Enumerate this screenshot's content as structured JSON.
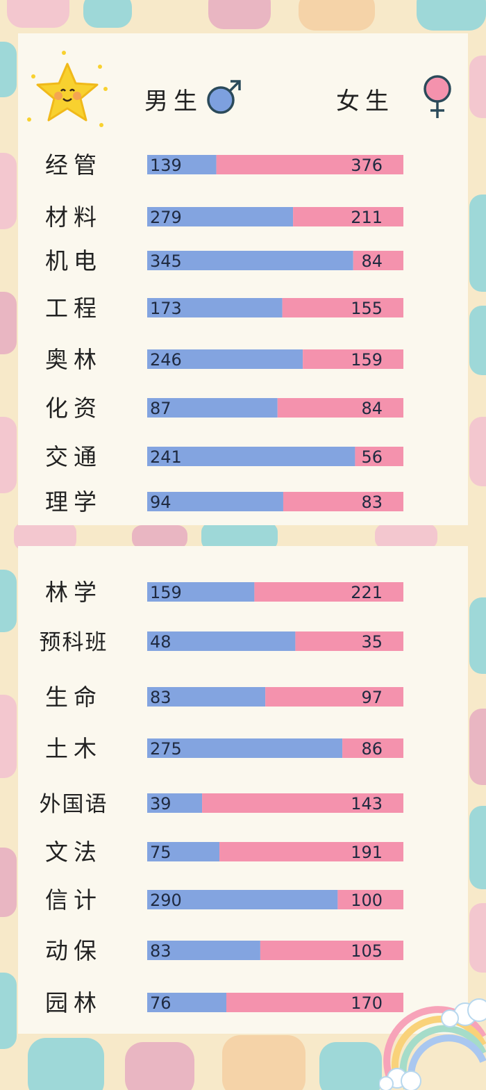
{
  "legend": {
    "male_label": "男生",
    "female_label": "女生",
    "male_icon": "male-symbol-icon",
    "female_icon": "female-symbol-icon"
  },
  "decorations": {
    "corner_icon": "smiling-star-icon",
    "bottom_icon": "rainbow-cloud-icon"
  },
  "colors": {
    "male": "#83a4e0",
    "female": "#f492ad",
    "background": "#f7e9c9",
    "panel": "#fbf8ee"
  },
  "chart_data": [
    {
      "type": "bar",
      "orientation": "horizontal-stacked-100",
      "categories": [
        "经管",
        "材料",
        "机电",
        "工程",
        "奥林",
        "化资",
        "交通",
        "理学"
      ],
      "series": [
        {
          "name": "男生",
          "values": [
            139,
            279,
            345,
            173,
            246,
            87,
            241,
            94
          ]
        },
        {
          "name": "女生",
          "values": [
            376,
            211,
            84,
            155,
            159,
            84,
            56,
            83
          ]
        }
      ]
    },
    {
      "type": "bar",
      "orientation": "horizontal-stacked-100",
      "categories": [
        "林学",
        "预科班",
        "生命",
        "土木",
        "外国语",
        "文法",
        "信计",
        "动保",
        "园林"
      ],
      "series": [
        {
          "name": "男生",
          "values": [
            159,
            48,
            83,
            275,
            39,
            75,
            290,
            83,
            76
          ]
        },
        {
          "name": "女生",
          "values": [
            221,
            35,
            97,
            86,
            143,
            191,
            100,
            105,
            170
          ]
        }
      ]
    }
  ]
}
